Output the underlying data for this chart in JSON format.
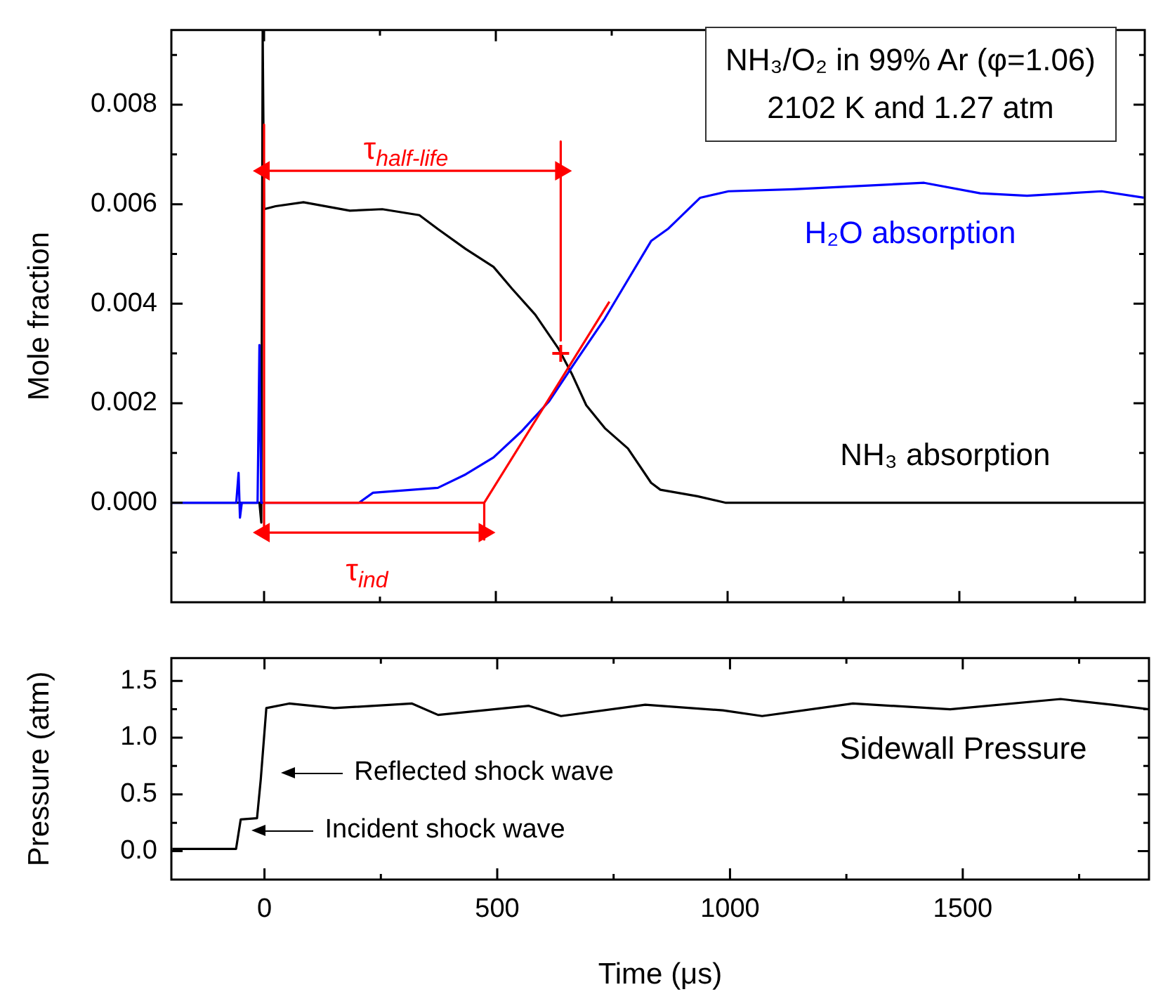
{
  "chart_data": [
    {
      "type": "line",
      "ylabel": "Mole fraction",
      "xlim": [
        -200,
        1900
      ],
      "ylim": [
        -0.002,
        0.0095
      ],
      "tick_labels": "y",
      "xticks": [
        0,
        {
          "value": 250,
          "label": null
        },
        500,
        {
          "value": 750,
          "label": null
        },
        1000,
        {
          "value": 1250,
          "label": null
        },
        1500,
        {
          "value": 1750,
          "label": null
        }
      ],
      "yticks": [
        {
          "value": -0.001,
          "label": null
        },
        {
          "value": 0,
          "label": "0.000"
        },
        {
          "value": 0.001,
          "label": null
        },
        {
          "value": 0.002,
          "label": "0.002"
        },
        {
          "value": 0.003,
          "label": null
        },
        {
          "value": 0.004,
          "label": "0.004"
        },
        {
          "value": 0.005,
          "label": null
        },
        {
          "value": 0.006,
          "label": "0.006"
        },
        {
          "value": 0.007,
          "label": null
        },
        {
          "value": 0.008,
          "label": "0.008"
        },
        {
          "value": 0.009,
          "label": null
        }
      ],
      "series": [
        {
          "name": "NH₃ absorption",
          "color": "#000000",
          "x": [
            -200,
            -10,
            -6,
            -3,
            0,
            25,
            85,
            185,
            255,
            335,
            375,
            435,
            495,
            535,
            585,
            635,
            665,
            695,
            735,
            785,
            835,
            855,
            935,
            995,
            1100,
            1300,
            1500,
            1700,
            1900
          ],
          "values": [
            0,
            0,
            -0.0004,
            0.0095,
            0.0059,
            0.00596,
            0.00604,
            0.00587,
            0.0059,
            0.00578,
            0.0055,
            0.0051,
            0.00474,
            0.0043,
            0.00378,
            0.0031,
            0.00257,
            0.00196,
            0.0015,
            0.00109,
            0.0004,
            0.00026,
            0.00013,
            0,
            0,
            0,
            0,
            0,
            0
          ]
        },
        {
          "name": "H₂O absorption",
          "color": "#0000ff",
          "x": [
            -200,
            -60,
            -55,
            -52,
            -48,
            -14,
            -10,
            -6,
            35,
            205,
            235,
            375,
            435,
            495,
            555,
            615,
            665,
            735,
            785,
            835,
            871,
            941,
            1002,
            1142,
            1424,
            1545,
            1646,
            1807,
            1898
          ],
          "values": [
            0,
            0,
            0.0006,
            -0.0003,
            0,
            0,
            0.00317,
            0,
            0,
            0,
            0.0002,
            0.0003,
            0.00057,
            0.00091,
            0.00143,
            0.00204,
            0.00274,
            0.0037,
            0.00448,
            0.00526,
            0.0055,
            0.00613,
            0.00626,
            0.0063,
            0.00643,
            0.00622,
            0.00617,
            0.00626,
            0.00613
          ]
        },
        {
          "type": "line",
          "color": "#ff0000",
          "x": [
            0,
            475,
            745
          ],
          "values": [
            0,
            0,
            0.00404
          ]
        },
        {
          "type": "line",
          "color": "#ff0000",
          "x": [
            0,
            0
          ],
          "values": [
            0.0076,
            -0.0007
          ]
        },
        {
          "type": "line",
          "color": "#ff0000",
          "x": [
            475,
            475
          ],
          "values": [
            0,
            -0.00074
          ]
        },
        {
          "type": "line",
          "color": "#ff0000",
          "x": [
            640,
            640
          ],
          "values": [
            0.00726,
            0.00326
          ]
        },
        {
          "type": "line",
          "color": "#ff0000",
          "marker": "triangle",
          "x": [
            0,
            640
          ],
          "values": [
            0.00667,
            0.00667
          ]
        },
        {
          "type": "line",
          "color": "#ff0000",
          "marker": "triangle",
          "x": [
            0,
            475
          ],
          "values": [
            -0.0006,
            -0.0006
          ]
        },
        {
          "type": "scatter",
          "color": "#ff0000",
          "marker": "cross",
          "x": [
            640
          ],
          "values": [
            0.003
          ]
        }
      ],
      "annotations": [
        "NH₃/O₂ in 99% Ar (φ=1.06)",
        "2102 K and 1.27 atm",
        "τ$_{half-life}$",
        "τ$_{ind}$"
      ]
    },
    {
      "type": "line",
      "xlabel": "Time (μs)",
      "ylabel": "Pressure (atm)",
      "xlim": [
        -200,
        1900
      ],
      "ylim": [
        -0.25,
        1.7
      ],
      "xticks": [
        0,
        {
          "value": 250,
          "label": null
        },
        500,
        {
          "value": 750,
          "label": null
        },
        1000,
        {
          "value": 1250,
          "label": null
        },
        1500,
        {
          "value": 1750,
          "label": null
        }
      ],
      "yticks": [
        {
          "value": 0,
          "label": "0.0"
        },
        {
          "value": 0.25,
          "label": null
        },
        {
          "value": 0.5,
          "label": "0.5"
        },
        {
          "value": 0.75,
          "label": null
        },
        {
          "value": 1,
          "label": "1.0"
        },
        {
          "value": 1.25,
          "label": null
        },
        {
          "value": 1.5,
          "label": "1.5"
        }
      ],
      "series": [
        {
          "name": "Sidewall Pressure",
          "color": "#000000",
          "x": [
            -198,
            -61,
            -51,
            -16,
            -8,
            4,
            53,
            150,
            317,
            373,
            568,
            637,
            818,
            985,
            1069,
            1264,
            1473,
            1710,
            1821,
            1900
          ],
          "values": [
            0.02,
            0.02,
            0.28,
            0.29,
            0.63,
            1.26,
            1.3,
            1.26,
            1.3,
            1.2,
            1.28,
            1.19,
            1.29,
            1.24,
            1.19,
            1.3,
            1.25,
            1.34,
            1.29,
            1.25
          ]
        }
      ],
      "annotations": [
        "Reflected shock wave",
        "Incident shock wave"
      ]
    }
  ]
}
